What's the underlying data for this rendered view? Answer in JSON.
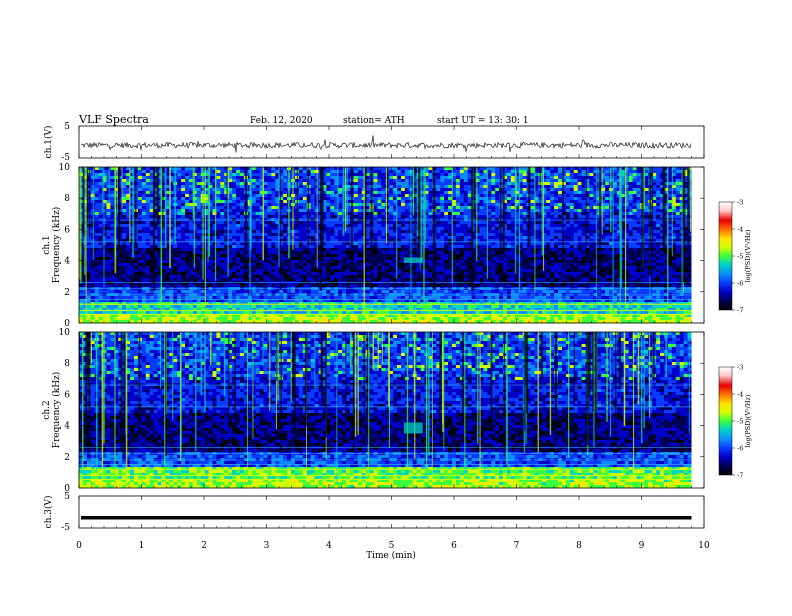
{
  "header": {
    "title": "VLF  Spectra",
    "date": "Feb. 12, 2020",
    "station": "station= ATH",
    "start_ut": "start  UT  =   13: 30: 1"
  },
  "colors": {
    "spectrum_scale": [
      "#000000",
      "#000050",
      "#0000c8",
      "#0a3cff",
      "#0a8cff",
      "#00d2c8",
      "#3cff3c",
      "#d2ff00",
      "#ffe600",
      "#ff7800",
      "#e60000",
      "#ffc8c8",
      "#ffffff"
    ]
  },
  "chart_data": [
    {
      "name_panel": "ch1-voltage",
      "type": "line",
      "ylabel": "ch.1(V)",
      "yticks": [
        "5",
        "-5"
      ],
      "ylim": [
        -5,
        5
      ],
      "xlim": [
        0,
        10
      ],
      "trace_level": -1,
      "trace_noise_amplitude": 0.9,
      "note": ""
    },
    {
      "name_panel": "ch1-spectrogram",
      "type": "heatmap",
      "ylabel": "ch.1\nFrequency (kHz)",
      "ylabel_lines": [
        "ch.1",
        "Frequency (kHz)"
      ],
      "yticks": [
        "0",
        "2",
        "4",
        "6",
        "8",
        "10"
      ],
      "ylim": [
        0,
        10
      ],
      "xlim": [
        0,
        10
      ],
      "colorbar": {
        "label": "log(PSD)(V²/Hz)",
        "ticks": [
          "-3",
          "-4",
          "-5",
          "-6",
          "-7"
        ],
        "range": [
          -7,
          -3
        ]
      }
    },
    {
      "name_panel": "ch2-spectrogram",
      "type": "heatmap",
      "ylabel_lines": [
        "ch.2",
        "Frequency (kHz)"
      ],
      "yticks": [
        "0",
        "2",
        "4",
        "6",
        "8",
        "10"
      ],
      "ylim": [
        0,
        10
      ],
      "xlim": [
        0,
        10
      ],
      "colorbar": {
        "label": "log(PSD)(V²/Hz)",
        "ticks": [
          "-3",
          "-4",
          "-5",
          "-6",
          "-7"
        ],
        "range": [
          -7,
          -3
        ]
      }
    },
    {
      "name_panel": "ch3-voltage",
      "type": "line",
      "ylabel": "ch.3(V)",
      "yticks": [
        "5",
        "-5"
      ],
      "ylim": [
        -5,
        5
      ],
      "xlim": [
        0,
        10
      ],
      "trace_level": -1.8
    }
  ],
  "xaxis": {
    "label": "Time  (min)",
    "ticks": [
      "0",
      "1",
      "2",
      "3",
      "4",
      "5",
      "6",
      "7",
      "8",
      "9",
      "10"
    ],
    "range": [
      0,
      10
    ],
    "data_end_min": 9.8
  }
}
